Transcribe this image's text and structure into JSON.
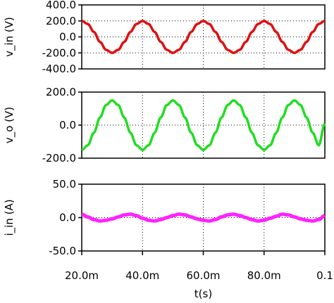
{
  "chart_data": [
    {
      "type": "line",
      "ylabel": "v_in (V)",
      "ylim": [
        -400,
        400
      ],
      "yticks": [
        400,
        200,
        0,
        -200,
        -400
      ],
      "ytick_labels": [
        "400.0",
        "200.0",
        "0.0",
        "-200.0",
        "-400.0"
      ],
      "xlim": [
        0.02,
        0.1
      ],
      "grid": true,
      "series": [
        {
          "color": "#dd1111",
          "x": [
            0.02,
            0.022,
            0.024,
            0.026,
            0.028,
            0.03,
            0.032,
            0.034,
            0.036,
            0.038,
            0.04,
            0.042,
            0.044,
            0.046,
            0.048,
            0.05,
            0.052,
            0.054,
            0.056,
            0.058,
            0.06,
            0.062,
            0.064,
            0.066,
            0.068,
            0.07,
            0.072,
            0.074,
            0.076,
            0.078,
            0.08,
            0.082,
            0.084,
            0.086,
            0.088,
            0.09,
            0.092,
            0.094,
            0.096,
            0.098,
            0.1
          ],
          "y": [
            200,
            162,
            62,
            -62,
            -162,
            -200,
            -162,
            -62,
            62,
            162,
            200,
            162,
            62,
            -62,
            -162,
            -200,
            -162,
            -62,
            62,
            162,
            200,
            162,
            62,
            -62,
            -162,
            -200,
            -162,
            -62,
            62,
            162,
            200,
            162,
            62,
            -62,
            -162,
            -200,
            -162,
            -62,
            62,
            162,
            200
          ]
        }
      ]
    },
    {
      "type": "line",
      "ylabel": "v_o (V)",
      "ylim": [
        -200,
        200
      ],
      "yticks": [
        200,
        0,
        -200
      ],
      "ytick_labels": [
        "200.0",
        "0.0",
        "-200.0"
      ],
      "xlim": [
        0.02,
        0.1
      ],
      "grid": true,
      "series": [
        {
          "color": "#22dd22",
          "x": [
            0.02,
            0.022,
            0.024,
            0.026,
            0.028,
            0.03,
            0.032,
            0.034,
            0.036,
            0.038,
            0.04,
            0.042,
            0.044,
            0.046,
            0.048,
            0.05,
            0.052,
            0.054,
            0.056,
            0.058,
            0.06,
            0.062,
            0.064,
            0.066,
            0.068,
            0.07,
            0.072,
            0.074,
            0.076,
            0.078,
            0.08,
            0.082,
            0.084,
            0.086,
            0.088,
            0.09,
            0.092,
            0.094,
            0.096,
            0.098,
            0.1
          ],
          "y": [
            -150,
            -122,
            -46,
            46,
            122,
            150,
            122,
            46,
            -46,
            -122,
            -150,
            -122,
            -46,
            46,
            122,
            150,
            122,
            46,
            -46,
            -122,
            -150,
            -122,
            -46,
            46,
            122,
            150,
            122,
            46,
            -46,
            -122,
            -150,
            -122,
            -46,
            46,
            122,
            150,
            122,
            46,
            -46,
            -122,
            10
          ]
        }
      ]
    },
    {
      "type": "line",
      "ylabel": "i_in (A)",
      "ylim": [
        -50,
        50
      ],
      "yticks": [
        50,
        0,
        -50
      ],
      "ytick_labels": [
        "50.0",
        "0.0",
        "-50.0"
      ],
      "xlim": [
        0.02,
        0.1
      ],
      "xticks": [
        0.02,
        0.04,
        0.06,
        0.08,
        0.1
      ],
      "xtick_labels": [
        "20.0m",
        "40.0m",
        "60.0m",
        "80.0m",
        "0.1"
      ],
      "xlabel": "t(s)",
      "grid": true,
      "series": [
        {
          "color": "#ff22ff",
          "x": [
            0.02,
            0.022,
            0.024,
            0.026,
            0.028,
            0.03,
            0.032,
            0.034,
            0.036,
            0.038,
            0.04,
            0.042,
            0.044,
            0.046,
            0.048,
            0.05,
            0.052,
            0.054,
            0.056,
            0.058,
            0.06,
            0.062,
            0.064,
            0.066,
            0.068,
            0.07,
            0.072,
            0.074,
            0.076,
            0.078,
            0.08,
            0.082,
            0.084,
            0.086,
            0.088,
            0.09,
            0.092,
            0.094,
            0.096,
            0.098,
            0.1
          ],
          "y": [
            5,
            1,
            -3,
            -5,
            -4,
            -2,
            1,
            4,
            5,
            3,
            -1,
            -4,
            -5,
            -3,
            0,
            3,
            5,
            4,
            1,
            -2,
            -4,
            -5,
            -3,
            1,
            4,
            5,
            3,
            0,
            -3,
            -5,
            -4,
            -1,
            2,
            5,
            4,
            1,
            -2,
            -4,
            -5,
            -3,
            3
          ]
        }
      ]
    }
  ]
}
